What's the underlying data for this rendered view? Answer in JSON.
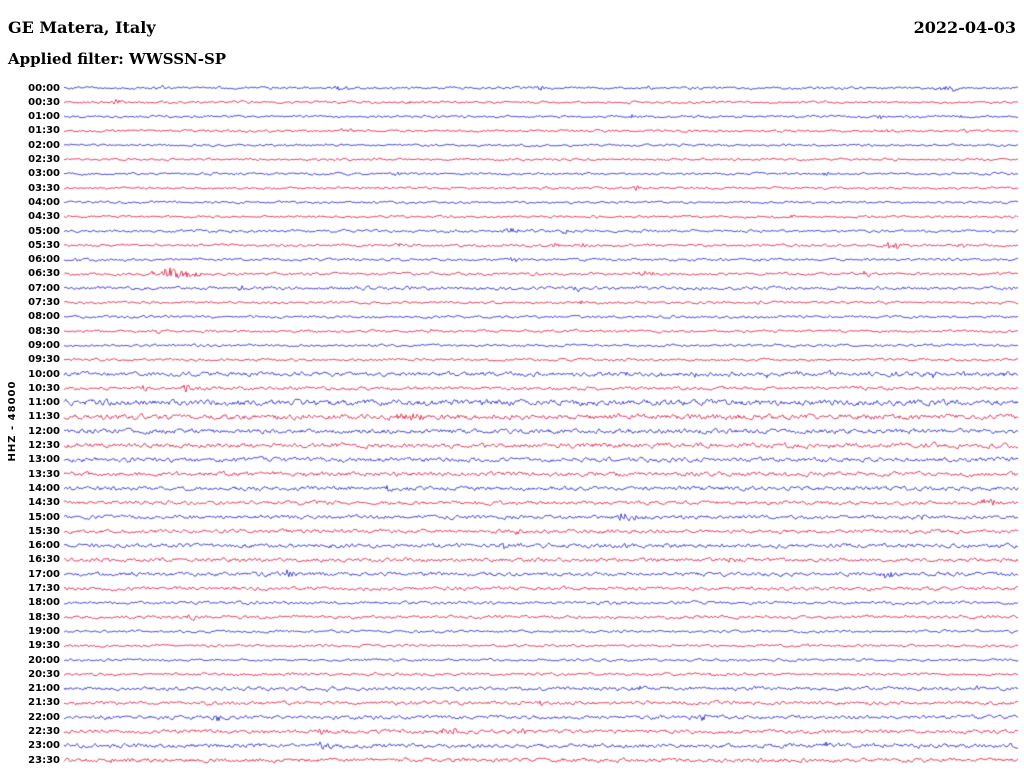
{
  "header": {
    "station": "GE Matera, Italy",
    "date": "2022-04-03",
    "filter_label": "Applied filter: WWSSN-SP"
  },
  "axis": {
    "left_label": "HHZ - 48000"
  },
  "chart_data": {
    "type": "line",
    "kind": "helicorder-seismogram",
    "title": "GE Matera, Italy",
    "subtitle": "Applied filter: WWSSN-SP",
    "date": "2022-04-03",
    "channel_label": "HHZ - 48000",
    "row_duration_min": 30,
    "legend": "none",
    "grid": false,
    "palette": {
      "blue": "#2020cd",
      "red": "#dc1540"
    },
    "rows": [
      {
        "time": "00:00",
        "color": "blue",
        "noise": 1.0,
        "events": [
          {
            "p": 0.1,
            "w": 5,
            "a": 2
          },
          {
            "p": 0.29,
            "w": 8,
            "a": 2.5
          },
          {
            "p": 0.5,
            "w": 5,
            "a": 2
          },
          {
            "p": 0.615,
            "w": 5,
            "a": 2
          },
          {
            "p": 0.925,
            "w": 14,
            "a": 2.5
          }
        ]
      },
      {
        "time": "00:30",
        "color": "red",
        "noise": 0.9,
        "events": [
          {
            "p": 0.055,
            "w": 4,
            "a": 3
          },
          {
            "p": 0.36,
            "w": 4,
            "a": 1.5
          }
        ]
      },
      {
        "time": "01:00",
        "color": "blue",
        "noise": 0.9,
        "events": [
          {
            "p": 0.595,
            "w": 5,
            "a": 2
          },
          {
            "p": 0.855,
            "w": 4,
            "a": 2
          },
          {
            "p": 0.94,
            "w": 4,
            "a": 2
          }
        ]
      },
      {
        "time": "01:30",
        "color": "red",
        "noise": 0.9,
        "events": [
          {
            "p": 0.3,
            "w": 10,
            "a": 1.5
          },
          {
            "p": 0.86,
            "w": 4,
            "a": 2
          },
          {
            "p": 0.945,
            "w": 4,
            "a": 2
          }
        ]
      },
      {
        "time": "02:00",
        "color": "blue",
        "noise": 0.9,
        "events": []
      },
      {
        "time": "02:30",
        "color": "red",
        "noise": 0.9,
        "events": [
          {
            "p": 0.52,
            "w": 4,
            "a": 1.3
          }
        ]
      },
      {
        "time": "03:00",
        "color": "blue",
        "noise": 0.9,
        "events": [
          {
            "p": 0.35,
            "w": 5,
            "a": 2
          },
          {
            "p": 0.545,
            "w": 4,
            "a": 1.5
          },
          {
            "p": 0.8,
            "w": 5,
            "a": 2
          }
        ]
      },
      {
        "time": "03:30",
        "color": "red",
        "noise": 0.9,
        "events": [
          {
            "p": 0.6,
            "w": 4,
            "a": 2.5
          }
        ]
      },
      {
        "time": "04:00",
        "color": "blue",
        "noise": 0.9,
        "events": [
          {
            "p": 0.74,
            "w": 4,
            "a": 1.5
          }
        ]
      },
      {
        "time": "04:30",
        "color": "red",
        "noise": 0.9,
        "events": [
          {
            "p": 0.76,
            "w": 4,
            "a": 1.8
          }
        ]
      },
      {
        "time": "05:00",
        "color": "blue",
        "noise": 1.0,
        "events": [
          {
            "p": 0.47,
            "w": 10,
            "a": 2.5
          },
          {
            "p": 0.525,
            "w": 4,
            "a": 2
          },
          {
            "p": 0.73,
            "w": 4,
            "a": 1.5
          }
        ]
      },
      {
        "time": "05:30",
        "color": "red",
        "noise": 1.0,
        "events": [
          {
            "p": 0.35,
            "w": 4,
            "a": 2
          },
          {
            "p": 0.515,
            "w": 4,
            "a": 2
          },
          {
            "p": 0.545,
            "w": 4,
            "a": 2
          },
          {
            "p": 0.87,
            "w": 12,
            "a": 3
          },
          {
            "p": 0.94,
            "w": 5,
            "a": 2.5
          }
        ]
      },
      {
        "time": "06:00",
        "color": "blue",
        "noise": 1.0,
        "events": [
          {
            "p": 0.012,
            "w": 4,
            "a": 2
          },
          {
            "p": 0.47,
            "w": 4,
            "a": 2.5
          },
          {
            "p": 0.73,
            "w": 4,
            "a": 1.5
          },
          {
            "p": 0.84,
            "w": 4,
            "a": 1.5
          }
        ]
      },
      {
        "time": "06:30",
        "color": "red",
        "noise": 1.1,
        "events": [
          {
            "p": 0.115,
            "w": 22,
            "a": 6
          },
          {
            "p": 0.61,
            "w": 8,
            "a": 3
          },
          {
            "p": 0.84,
            "w": 8,
            "a": 2.5
          }
        ]
      },
      {
        "time": "07:00",
        "color": "blue",
        "noise": 1.3,
        "events": [
          {
            "p": 0.185,
            "w": 5,
            "a": 2
          },
          {
            "p": 0.54,
            "w": 5,
            "a": 2.5
          }
        ]
      },
      {
        "time": "07:30",
        "color": "red",
        "noise": 1.0,
        "events": [
          {
            "p": 0.54,
            "w": 4,
            "a": 2
          },
          {
            "p": 0.73,
            "w": 4,
            "a": 1.5
          }
        ]
      },
      {
        "time": "08:00",
        "color": "blue",
        "noise": 1.0,
        "events": [
          {
            "p": 0.715,
            "w": 4,
            "a": 2
          }
        ]
      },
      {
        "time": "08:30",
        "color": "red",
        "noise": 1.0,
        "events": [
          {
            "p": 0.1,
            "w": 5,
            "a": 2.5
          },
          {
            "p": 0.385,
            "w": 4,
            "a": 2
          }
        ]
      },
      {
        "time": "09:00",
        "color": "blue",
        "noise": 1.0,
        "events": []
      },
      {
        "time": "09:30",
        "color": "red",
        "noise": 1.0,
        "events": [
          {
            "p": 0.2,
            "w": 5,
            "a": 1.5
          }
        ]
      },
      {
        "time": "10:00",
        "color": "blue",
        "noise": 1.6,
        "events": [
          {
            "p": 0.59,
            "w": 4,
            "a": 2.2
          },
          {
            "p": 0.625,
            "w": 4,
            "a": 2.2
          },
          {
            "p": 0.66,
            "w": 4,
            "a": 2.2
          },
          {
            "p": 0.7,
            "w": 4,
            "a": 2.2
          },
          {
            "p": 0.735,
            "w": 4,
            "a": 2.2
          },
          {
            "p": 0.77,
            "w": 4,
            "a": 2.2
          },
          {
            "p": 0.805,
            "w": 4,
            "a": 2.2
          },
          {
            "p": 0.84,
            "w": 4,
            "a": 2.2
          },
          {
            "p": 0.875,
            "w": 4,
            "a": 2.2
          },
          {
            "p": 0.91,
            "w": 4,
            "a": 2.2
          },
          {
            "p": 0.945,
            "w": 4,
            "a": 2.2
          },
          {
            "p": 0.985,
            "w": 4,
            "a": 2.2
          }
        ]
      },
      {
        "time": "10:30",
        "color": "red",
        "noise": 1.3,
        "events": [
          {
            "p": 0.035,
            "w": 4,
            "a": 3
          },
          {
            "p": 0.085,
            "w": 4,
            "a": 3
          },
          {
            "p": 0.13,
            "w": 7,
            "a": 3.5
          }
        ]
      },
      {
        "time": "11:00",
        "color": "blue",
        "noise": 2.2,
        "events": []
      },
      {
        "time": "11:30",
        "color": "red",
        "noise": 2.0,
        "events": [
          {
            "p": 0.36,
            "w": 14,
            "a": 3
          }
        ]
      },
      {
        "time": "12:00",
        "color": "blue",
        "noise": 1.8,
        "events": []
      },
      {
        "time": "12:30",
        "color": "red",
        "noise": 1.8,
        "events": []
      },
      {
        "time": "13:00",
        "color": "blue",
        "noise": 1.7,
        "events": []
      },
      {
        "time": "13:30",
        "color": "red",
        "noise": 1.7,
        "events": []
      },
      {
        "time": "14:00",
        "color": "blue",
        "noise": 1.6,
        "events": [
          {
            "p": 0.34,
            "w": 5,
            "a": 2.5
          }
        ]
      },
      {
        "time": "14:30",
        "color": "red",
        "noise": 1.5,
        "events": [
          {
            "p": 0.97,
            "w": 9,
            "a": 3
          }
        ]
      },
      {
        "time": "15:00",
        "color": "blue",
        "noise": 1.5,
        "events": [
          {
            "p": 0.59,
            "w": 16,
            "a": 3.5
          },
          {
            "p": 0.9,
            "w": 4,
            "a": 2
          }
        ]
      },
      {
        "time": "15:30",
        "color": "red",
        "noise": 1.5,
        "events": [
          {
            "p": 0.475,
            "w": 5,
            "a": 2.5
          }
        ]
      },
      {
        "time": "16:00",
        "color": "blue",
        "noise": 1.6,
        "events": [
          {
            "p": 0.28,
            "w": 4,
            "a": 2
          },
          {
            "p": 0.46,
            "w": 5,
            "a": 2.5
          },
          {
            "p": 0.59,
            "w": 5,
            "a": 2.5
          }
        ]
      },
      {
        "time": "16:30",
        "color": "red",
        "noise": 1.5,
        "events": [
          {
            "p": 0.7,
            "w": 9,
            "a": 2.5
          }
        ]
      },
      {
        "time": "17:00",
        "color": "blue",
        "noise": 1.5,
        "events": [
          {
            "p": 0.235,
            "w": 6,
            "a": 3
          },
          {
            "p": 0.86,
            "w": 11,
            "a": 3
          }
        ]
      },
      {
        "time": "17:30",
        "color": "red",
        "noise": 1.4,
        "events": []
      },
      {
        "time": "18:00",
        "color": "blue",
        "noise": 1.2,
        "events": [
          {
            "p": 0.58,
            "w": 4,
            "a": 1.5
          }
        ]
      },
      {
        "time": "18:30",
        "color": "red",
        "noise": 1.2,
        "events": [
          {
            "p": 0.135,
            "w": 6,
            "a": 2.5
          }
        ]
      },
      {
        "time": "19:00",
        "color": "blue",
        "noise": 1.0,
        "events": []
      },
      {
        "time": "19:30",
        "color": "red",
        "noise": 1.0,
        "events": [
          {
            "p": 0.78,
            "w": 4,
            "a": 1.5
          }
        ]
      },
      {
        "time": "20:00",
        "color": "blue",
        "noise": 1.0,
        "events": []
      },
      {
        "time": "20:30",
        "color": "red",
        "noise": 1.1,
        "events": [
          {
            "p": 0.68,
            "w": 4,
            "a": 1.5
          }
        ]
      },
      {
        "time": "21:00",
        "color": "blue",
        "noise": 1.4,
        "events": [
          {
            "p": 0.27,
            "w": 9,
            "a": 2.5
          },
          {
            "p": 0.6,
            "w": 5,
            "a": 2.5
          },
          {
            "p": 0.955,
            "w": 5,
            "a": 3
          }
        ]
      },
      {
        "time": "21:30",
        "color": "red",
        "noise": 1.4,
        "events": [
          {
            "p": 0.35,
            "w": 5,
            "a": 2
          },
          {
            "p": 0.5,
            "w": 5,
            "a": 2
          }
        ]
      },
      {
        "time": "22:00",
        "color": "blue",
        "noise": 1.4,
        "events": [
          {
            "p": 0.16,
            "w": 5,
            "a": 3
          },
          {
            "p": 0.67,
            "w": 5,
            "a": 2.5
          }
        ]
      },
      {
        "time": "22:30",
        "color": "red",
        "noise": 1.5,
        "events": [
          {
            "p": 0.27,
            "w": 5,
            "a": 2.5
          },
          {
            "p": 0.4,
            "w": 11,
            "a": 3
          },
          {
            "p": 0.48,
            "w": 5,
            "a": 2.5
          }
        ]
      },
      {
        "time": "23:00",
        "color": "blue",
        "noise": 1.6,
        "events": [
          {
            "p": 0.27,
            "w": 9,
            "a": 3
          },
          {
            "p": 0.545,
            "w": 5,
            "a": 2.5
          },
          {
            "p": 0.8,
            "w": 5,
            "a": 2.5
          }
        ]
      },
      {
        "time": "23:30",
        "color": "red",
        "noise": 1.5,
        "events": [
          {
            "p": 0.05,
            "w": 4,
            "a": 2
          }
        ]
      }
    ]
  }
}
